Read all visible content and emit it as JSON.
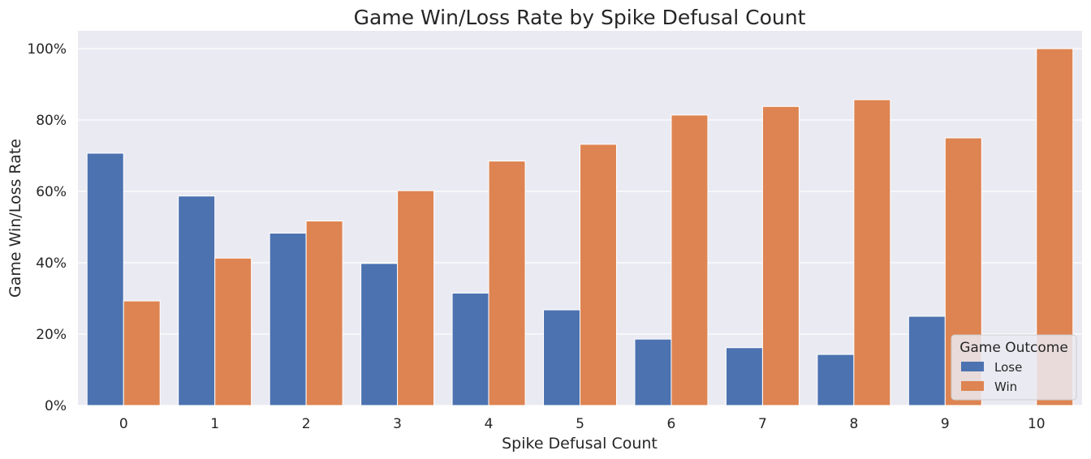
{
  "chart_data": {
    "type": "bar",
    "title": "Game Win/Loss Rate by Spike Defusal Count",
    "xlabel": "Spike Defusal Count",
    "ylabel": "Game Win/Loss Rate",
    "categories": [
      "0",
      "1",
      "2",
      "3",
      "4",
      "5",
      "6",
      "7",
      "8",
      "9",
      "10"
    ],
    "series": [
      {
        "name": "Lose",
        "color": "#4c72b0",
        "values": [
          0.707,
          0.587,
          0.483,
          0.398,
          0.315,
          0.268,
          0.186,
          0.162,
          0.143,
          0.25,
          0.0
        ]
      },
      {
        "name": "Win",
        "color": "#dd8452",
        "values": [
          0.293,
          0.413,
          0.517,
          0.602,
          0.685,
          0.732,
          0.814,
          0.838,
          0.857,
          0.75,
          1.0
        ]
      }
    ],
    "ylim": [
      0,
      1.05
    ],
    "yticks": [
      0,
      0.2,
      0.4,
      0.6,
      0.8,
      1.0
    ],
    "ytick_labels": [
      "0%",
      "20%",
      "40%",
      "60%",
      "80%",
      "100%"
    ],
    "grid": true,
    "background": "#eaeaf2",
    "legend": {
      "title": "Game Outcome",
      "position": "lower-right"
    }
  }
}
